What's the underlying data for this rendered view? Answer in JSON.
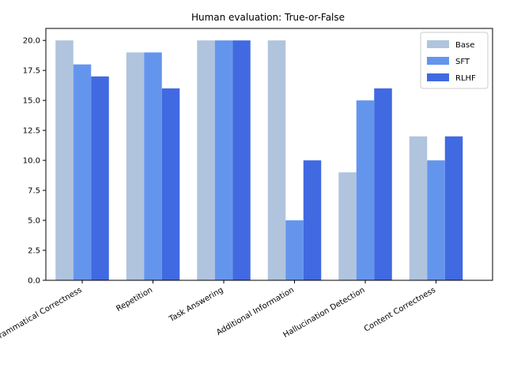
{
  "chart_data": {
    "type": "bar",
    "title": "Human evaluation: True-or-False",
    "xlabel": "",
    "ylabel": "",
    "categories": [
      "Grammatical Correctness",
      "Repetition",
      "Task Answering",
      "Additional Information",
      "Hallucination Detection",
      "Content Correctness"
    ],
    "series": [
      {
        "name": "Base",
        "color": "#b0c4de",
        "values": [
          20,
          19,
          20,
          20,
          9,
          12
        ]
      },
      {
        "name": "SFT",
        "color": "#6495ed",
        "values": [
          18,
          19,
          20,
          5,
          15,
          10
        ]
      },
      {
        "name": "RLHF",
        "color": "#4169e1",
        "values": [
          17,
          16,
          20,
          10,
          16,
          12
        ]
      }
    ],
    "ylim": [
      0,
      21
    ],
    "yticks": [
      "0.0",
      "2.5",
      "5.0",
      "7.5",
      "10.0",
      "12.5",
      "15.0",
      "17.5",
      "20.0"
    ],
    "grid": false,
    "legend_position": "top-right"
  }
}
